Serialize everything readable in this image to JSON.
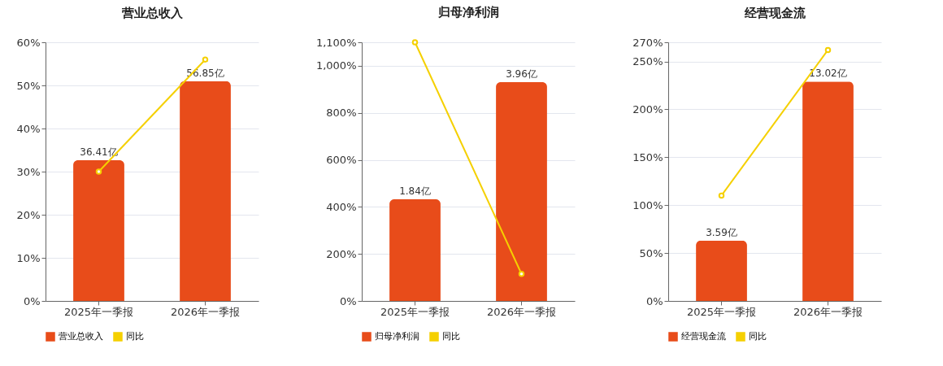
{
  "chart_data": [
    {
      "type": "bar",
      "title": "营业总收入",
      "categories": [
        "2025年一季报",
        "2026年一季报"
      ],
      "series": [
        {
          "name": "营业总收入",
          "axis": "y2",
          "color": "#e84c1a",
          "values": [
            36.41,
            56.85
          ],
          "value_labels": [
            "36.41亿",
            "56.85亿"
          ]
        },
        {
          "name": "同比",
          "type": "line",
          "color": "#f5d000",
          "values": [
            30,
            56
          ]
        }
      ],
      "ylim": [
        0,
        60
      ],
      "yticks": [
        {
          "value": 0,
          "label": "0%"
        },
        {
          "value": 10,
          "label": "10%"
        },
        {
          "value": 20,
          "label": "20%"
        },
        {
          "value": 30,
          "label": "30%"
        },
        {
          "value": 40,
          "label": "40%"
        },
        {
          "value": 50,
          "label": "50%"
        },
        {
          "value": 60,
          "label": "60%"
        }
      ],
      "y2lim": [
        0,
        66.9
      ],
      "grid": "y",
      "legend": "bottom",
      "marker": "circle"
    },
    {
      "type": "bar",
      "title": "归母净利润",
      "categories": [
        "2025年一季报",
        "2026年一季报"
      ],
      "series": [
        {
          "name": "归母净利润",
          "axis": "y2",
          "color": "#e84c1a",
          "values": [
            1.84,
            3.96
          ],
          "value_labels": [
            "1.84亿",
            "3.96亿"
          ]
        },
        {
          "name": "同比",
          "type": "line",
          "color": "#f5d000",
          "values": [
            1100,
            115
          ]
        }
      ],
      "ylim": [
        0,
        1100
      ],
      "yticks": [
        {
          "value": 0,
          "label": "0%"
        },
        {
          "value": 200,
          "label": "200%"
        },
        {
          "value": 400,
          "label": "400%"
        },
        {
          "value": 600,
          "label": "600%"
        },
        {
          "value": 800,
          "label": "800%"
        },
        {
          "value": 1000,
          "label": "1,000%"
        },
        {
          "value": 1100,
          "label": "1,100%"
        }
      ],
      "y2lim": [
        0,
        4.68
      ],
      "grid": "y",
      "legend": "bottom",
      "marker": "circle"
    },
    {
      "type": "bar",
      "title": "经营现金流",
      "categories": [
        "2025年一季报",
        "2026年一季报"
      ],
      "series": [
        {
          "name": "经营现金流",
          "axis": "y2",
          "color": "#e84c1a",
          "values": [
            3.59,
            13.02
          ],
          "value_labels": [
            "3.59亿",
            "13.02亿"
          ]
        },
        {
          "name": "同比",
          "type": "line",
          "color": "#f5d000",
          "values": [
            110,
            262
          ]
        }
      ],
      "ylim": [
        0,
        270
      ],
      "yticks": [
        {
          "value": 0,
          "label": "0%"
        },
        {
          "value": 50,
          "label": "50%"
        },
        {
          "value": 100,
          "label": "100%"
        },
        {
          "value": 150,
          "label": "150%"
        },
        {
          "value": 200,
          "label": "200%"
        },
        {
          "value": 250,
          "label": "250%"
        },
        {
          "value": 270,
          "label": "270%"
        }
      ],
      "y2lim": [
        0,
        15.35
      ],
      "grid": "y",
      "legend": "bottom",
      "marker": "circle"
    }
  ]
}
